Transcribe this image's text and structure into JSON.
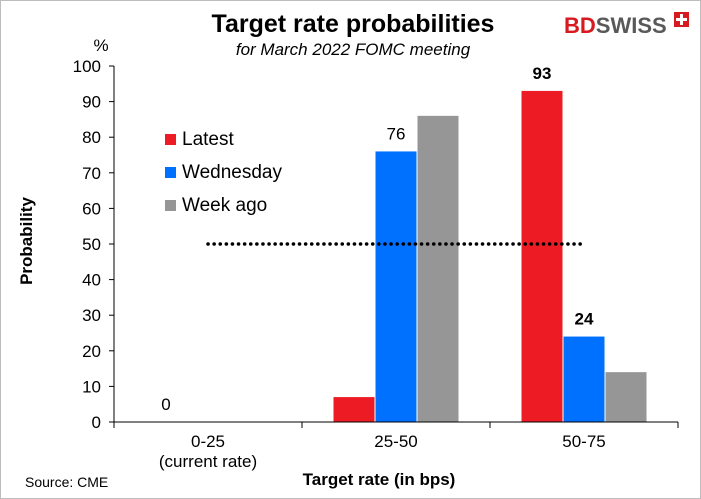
{
  "logo": {
    "part1": "BD",
    "part2": "SWISS",
    "color1": "#d71920",
    "color2": "#595959"
  },
  "chart_data": {
    "type": "bar",
    "title": "Target rate probabilities",
    "subtitle": "for March 2022 FOMC meeting",
    "unit": "%",
    "xlabel": "Target rate (in bps)",
    "ylabel": "Probability",
    "categories": [
      {
        "label": "0-25",
        "sublabel": "(current rate)"
      },
      {
        "label": "25-50",
        "sublabel": ""
      },
      {
        "label": "50-75",
        "sublabel": ""
      }
    ],
    "series": [
      {
        "name": "Latest",
        "color": "#ed1c24",
        "values": [
          0,
          7,
          93
        ]
      },
      {
        "name": "Wednesday",
        "color": "#0070ff",
        "values": [
          0,
          76,
          24
        ]
      },
      {
        "name": "Week ago",
        "color": "#969696",
        "values": [
          0,
          86,
          14
        ]
      }
    ],
    "data_labels": [
      {
        "category": 0,
        "series": 0,
        "text": "0",
        "bold": false
      },
      {
        "category": 1,
        "series": 1,
        "text": "76",
        "bold": false
      },
      {
        "category": 2,
        "series": 0,
        "text": "93",
        "bold": true
      },
      {
        "category": 2,
        "series": 1,
        "text": "24",
        "bold": true
      }
    ],
    "reference_line": {
      "value": 50,
      "style": "dotted",
      "from_category": 0,
      "to_category": 2
    },
    "ylim": [
      0,
      100
    ],
    "yticks": [
      0,
      10,
      20,
      30,
      40,
      50,
      60,
      70,
      80,
      90,
      100
    ],
    "grid": false,
    "legend_position": "upper-left inside plot",
    "source": "Source: CME"
  }
}
